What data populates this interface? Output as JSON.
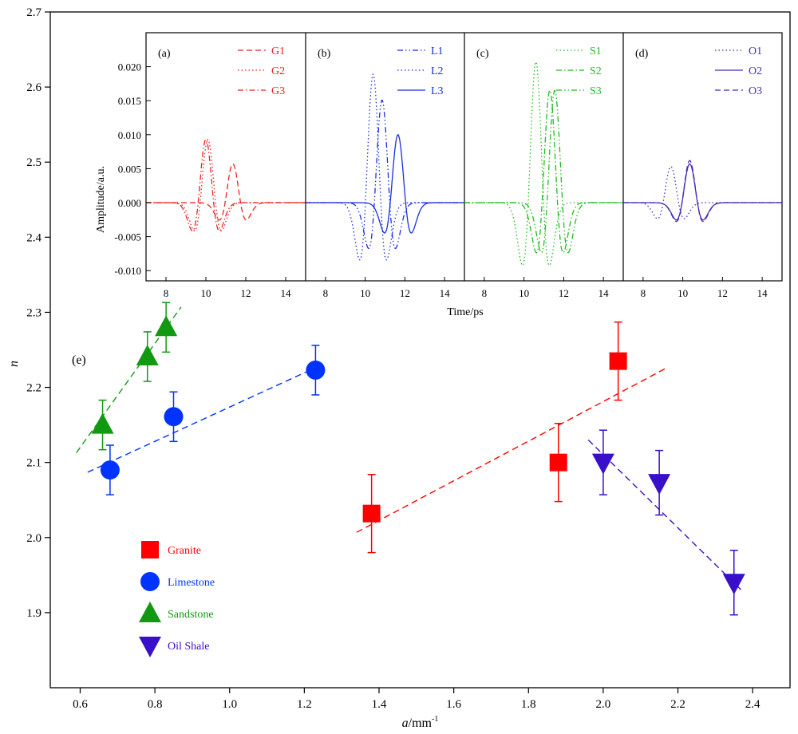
{
  "chart_data": [
    {
      "type": "scatter",
      "panel": "(e)",
      "xlabel": "a/mm",
      "xlabel_superscript": "-1",
      "ylabel": "n",
      "xlim": [
        0.52,
        2.5
      ],
      "ylim": [
        1.8,
        2.7
      ],
      "x_ticks": [
        "0.6",
        "0.8",
        "1.0",
        "1.2",
        "1.4",
        "1.6",
        "1.8",
        "2.0",
        "2.2",
        "2.4"
      ],
      "y_ticks": [
        "1.9",
        "2.0",
        "2.1",
        "2.2",
        "2.3",
        "2.4",
        "2.5",
        "2.6",
        "2.7"
      ],
      "grid": false,
      "legend_position": "bottom-left",
      "series": [
        {
          "name": "Granite",
          "color": "#ff0000",
          "marker": "square",
          "x": [
            1.38,
            1.88,
            2.04
          ],
          "y": [
            2.032,
            2.1,
            2.235
          ],
          "yerr": [
            0.052,
            0.052,
            0.052
          ],
          "fit": {
            "x": [
              1.34,
              2.17
            ],
            "y": [
              2.007,
              2.226
            ]
          }
        },
        {
          "name": "Limestone",
          "color": "#0033ff",
          "marker": "circle",
          "x": [
            0.68,
            0.85,
            1.23
          ],
          "y": [
            2.09,
            2.161,
            2.223
          ],
          "yerr": [
            0.033,
            0.033,
            0.033
          ],
          "fit": {
            "x": [
              0.62,
              1.22
            ],
            "y": [
              2.087,
              2.224
            ]
          }
        },
        {
          "name": "Sandstone",
          "color": "#119911",
          "marker": "triangle-up",
          "x": [
            0.66,
            0.78,
            0.83
          ],
          "y": [
            2.15,
            2.241,
            2.28
          ],
          "yerr": [
            0.033,
            0.033,
            0.033
          ],
          "fit": {
            "x": [
              0.59,
              0.87
            ],
            "y": [
              2.113,
              2.307
            ]
          }
        },
        {
          "name": "Oil Shale",
          "color": "#3a0fcc",
          "marker": "triangle-down",
          "x": [
            2.0,
            2.15,
            2.35
          ],
          "y": [
            2.1,
            2.073,
            1.94
          ],
          "yerr": [
            0.043,
            0.043,
            0.043
          ],
          "fit": {
            "x": [
              1.96,
              2.37
            ],
            "y": [
              2.13,
              1.93
            ]
          }
        }
      ]
    },
    {
      "type": "line",
      "panels": [
        "(a)",
        "(b)",
        "(c)",
        "(d)"
      ],
      "xlabel": "Time/ps",
      "ylabel": "Amplitude/a.u.",
      "xlim": [
        7,
        15
      ],
      "ylim": [
        -0.0115,
        0.025
      ],
      "x_ticks": [
        "8",
        "10",
        "12",
        "14"
      ],
      "y_ticks": [
        "-0.010",
        "-0.005",
        "0.000",
        "0.005",
        "0.010",
        "0.015",
        "0.020"
      ],
      "groups": [
        {
          "label": "(a)",
          "series": [
            {
              "name": "G1",
              "color": "#ee2222",
              "dash": "dash",
              "peak_t": 11.35,
              "amp": 0.0057
            },
            {
              "name": "G2",
              "color": "#ee2222",
              "dash": "dot",
              "peak_t": 10.1,
              "amp": 0.0093
            },
            {
              "name": "G3",
              "color": "#ee2222",
              "dash": "dashdot",
              "peak_t": 10.0,
              "amp": 0.0093
            }
          ]
        },
        {
          "label": "(b)",
          "series": [
            {
              "name": "L1",
              "color": "#1a2fe0",
              "dash": "dashdotdot",
              "peak_t": 10.85,
              "amp": 0.0151
            },
            {
              "name": "L2",
              "color": "#1a2fe0",
              "dash": "dot",
              "peak_t": 10.4,
              "amp": 0.0189
            },
            {
              "name": "L3",
              "color": "#1a2fe0",
              "dash": "solid",
              "peak_t": 11.65,
              "amp": 0.01
            }
          ]
        },
        {
          "label": "(c)",
          "series": [
            {
              "name": "S1",
              "color": "#22bb22",
              "dash": "dot",
              "peak_t": 10.6,
              "amp": 0.0207
            },
            {
              "name": "S2",
              "color": "#22bb22",
              "dash": "dashdot",
              "peak_t": 11.3,
              "amp": 0.0165
            },
            {
              "name": "S3",
              "color": "#22bb22",
              "dash": "dashdotdot",
              "peak_t": 11.55,
              "amp": 0.0165
            }
          ]
        },
        {
          "label": "(d)",
          "series": [
            {
              "name": "O1",
              "color": "#4b2bb5",
              "dash": "dot",
              "peak_t": 9.4,
              "amp": 0.0053
            },
            {
              "name": "O2",
              "color": "#4b2bb5",
              "dash": "solid",
              "peak_t": 10.35,
              "amp": 0.0057
            },
            {
              "name": "O3",
              "color": "#4b2bb5",
              "dash": "dash",
              "peak_t": 10.35,
              "amp": 0.0062
            }
          ]
        }
      ]
    }
  ]
}
